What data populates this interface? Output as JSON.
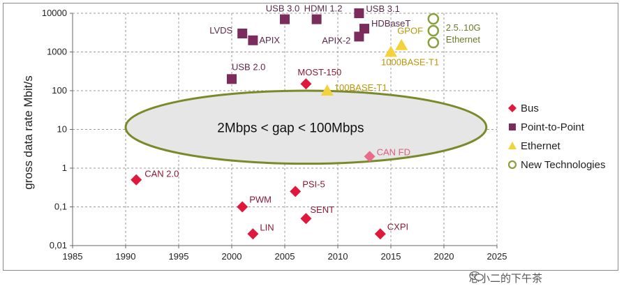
{
  "chart_data": {
    "type": "scatter",
    "ylabel": "gross data rate Mbit/s",
    "xlim": [
      1985,
      2025
    ],
    "ylim": [
      0.01,
      10000
    ],
    "yscale": "log",
    "grid": true,
    "x_ticks": [
      "1985",
      "1990",
      "1995",
      "2000",
      "2005",
      "2010",
      "2015",
      "2020",
      "2025"
    ],
    "y_ticks": [
      "0,01",
      "0,1",
      "1",
      "10",
      "100",
      "1000",
      "10000"
    ],
    "legend": {
      "placement": "right",
      "entries": [
        "Bus",
        "Point-to-Point",
        "Ethernet",
        "New Technologies"
      ]
    },
    "annotation": {
      "text": "2Mbps < gap < 100Mbps",
      "x_range": [
        1990,
        2024
      ],
      "y_range": [
        1.3,
        100
      ]
    },
    "series": [
      {
        "name": "Bus",
        "color": "#e0183c",
        "points": [
          {
            "label": "CAN 2.0",
            "x": 1991,
            "y": 0.5
          },
          {
            "label": "PWM",
            "x": 2001,
            "y": 0.1
          },
          {
            "label": "LIN",
            "x": 2002,
            "y": 0.02
          },
          {
            "label": "PSI-5",
            "x": 2006,
            "y": 0.25
          },
          {
            "label": "SENT",
            "x": 2007,
            "y": 0.05
          },
          {
            "label": "MOST-150",
            "x": 2007,
            "y": 150
          },
          {
            "label": "CAN FD",
            "x": 2013,
            "y": 2
          },
          {
            "label": "CXPI",
            "x": 2014,
            "y": 0.02
          }
        ]
      },
      {
        "name": "Point-to-Point",
        "color": "#7b2c5c",
        "points": [
          {
            "label": "USB 2.0",
            "x": 2000,
            "y": 200
          },
          {
            "label": "LVDS",
            "x": 2001,
            "y": 3000
          },
          {
            "label": "APIX",
            "x": 2002,
            "y": 2000
          },
          {
            "label": "USB 3.0",
            "x": 2005,
            "y": 7000
          },
          {
            "label": "HDMI 1.2",
            "x": 2008,
            "y": 7000
          },
          {
            "label": "USB 3.1",
            "x": 2012,
            "y": 10000
          },
          {
            "label": "HDBaseT",
            "x": 2012.5,
            "y": 4000
          },
          {
            "label": "APIX-2",
            "x": 2012,
            "y": 2500
          }
        ]
      },
      {
        "name": "Ethernet",
        "color": "#f3d23c",
        "points": [
          {
            "label": "100BASE-T1",
            "x": 2009,
            "y": 100
          },
          {
            "label": "1000BASE-T1",
            "x": 2015,
            "y": 1000
          },
          {
            "label": "GPOF",
            "x": 2016,
            "y": 1500
          }
        ]
      },
      {
        "name": "New Technologies",
        "color": "#8aa040",
        "points": [
          {
            "label": "2.5..10G Ethernet",
            "x": 2019,
            "y": 3000
          }
        ]
      }
    ],
    "new_tech_label_lines": [
      "2.5..10G",
      "Ethernet"
    ]
  },
  "watermark": {
    "text": "芯小二的下午茶"
  }
}
